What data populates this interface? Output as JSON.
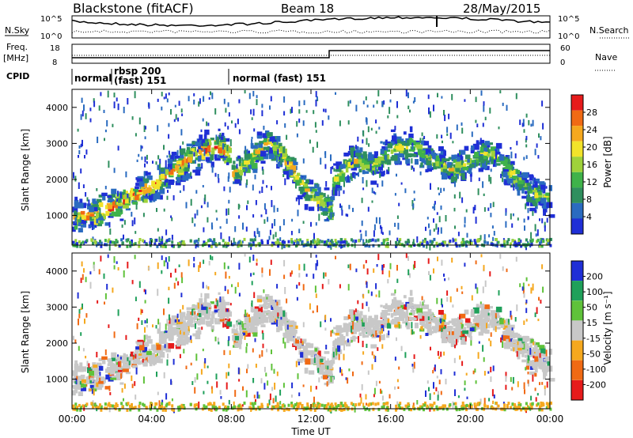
{
  "header": {
    "radar_title": "Blackstone (fitACF)",
    "beam": "Beam 18",
    "date": "28/May/2015"
  },
  "top_panels": {
    "nsky_label": "N.Sky",
    "nsearch_label": "N.Search",
    "noise_ticks": [
      "10^5",
      "10^0"
    ],
    "freq_label_1": "Freq.",
    "freq_label_2": "[MHz]",
    "freq_ticks": [
      "18",
      "8"
    ],
    "nave_label": "Nave",
    "nave_ticks": [
      "60",
      "0"
    ],
    "cpid_label": "CPID",
    "cpid_segments": [
      {
        "label": "normal",
        "start_hour": 0.0
      },
      {
        "label": "rbsp 200",
        "start_hour": 1.6,
        "second_line": "(fast) 151"
      },
      {
        "label": "normal (fast) 151",
        "start_hour": 7.85
      }
    ]
  },
  "colors": {
    "power": [
      "#1f2fd6",
      "#2a6bc0",
      "#2f8f5e",
      "#3fb24a",
      "#9fd23a",
      "#f2e32a",
      "#f5a81e",
      "#f06a14",
      "#e61b1b"
    ],
    "velocity": [
      "#e61b1b",
      "#f06a14",
      "#f5a81e",
      "#c8c8c8",
      "#5fc23a",
      "#1fa05a",
      "#1f2fd6"
    ]
  },
  "chart_data": [
    {
      "type": "heatmap",
      "title": "Power",
      "xlabel": "Time UT",
      "ylabel": "Slant Range [km]",
      "xlim": [
        0,
        24
      ],
      "ylim": [
        180,
        4500
      ],
      "x_ticks": [
        "00:00",
        "04:00",
        "08:00",
        "12:00",
        "16:00",
        "20:00",
        "00:00"
      ],
      "y_ticks": [
        "1000",
        "2000",
        "3000",
        "4000"
      ],
      "colorbar_label": "Power [dB]",
      "colorbar_ticks": [
        "28",
        "24",
        "20",
        "16",
        "12",
        "8",
        "4"
      ],
      "scatter_bands": [
        {
          "x": [
            0,
            1,
            2,
            3,
            4,
            5,
            6,
            7,
            7.8
          ],
          "center_range": [
            1000,
            1100,
            1300,
            1600,
            1900,
            2300,
            2700,
            3000,
            2800
          ],
          "peak_power": 30
        },
        {
          "x": [
            8,
            9,
            9.8,
            10.5,
            11.5,
            12.5,
            13
          ],
          "center_range": [
            2200,
            2700,
            3100,
            2700,
            1900,
            1400,
            1200
          ],
          "peak_power": 24
        },
        {
          "x": [
            13,
            14,
            15,
            16,
            17,
            18,
            19,
            20,
            21,
            22,
            23,
            24
          ],
          "center_range": [
            1900,
            2600,
            2400,
            2900,
            3000,
            2600,
            2300,
            2600,
            2800,
            2200,
            1700,
            1500
          ],
          "peak_power": 20
        }
      ]
    },
    {
      "type": "heatmap",
      "title": "Velocity",
      "xlabel": "Time UT",
      "ylabel": "Slant Range [km]",
      "xlim": [
        0,
        24
      ],
      "ylim": [
        180,
        4500
      ],
      "x_ticks": [
        "00:00",
        "04:00",
        "08:00",
        "12:00",
        "16:00",
        "20:00",
        "00:00"
      ],
      "y_ticks": [
        "1000",
        "2000",
        "3000",
        "4000"
      ],
      "colorbar_label": "Velocity [m s⁻¹]",
      "colorbar_ticks": [
        "200",
        "100",
        "50",
        "15",
        "-15",
        "-50",
        "-100",
        "-200"
      ]
    }
  ]
}
